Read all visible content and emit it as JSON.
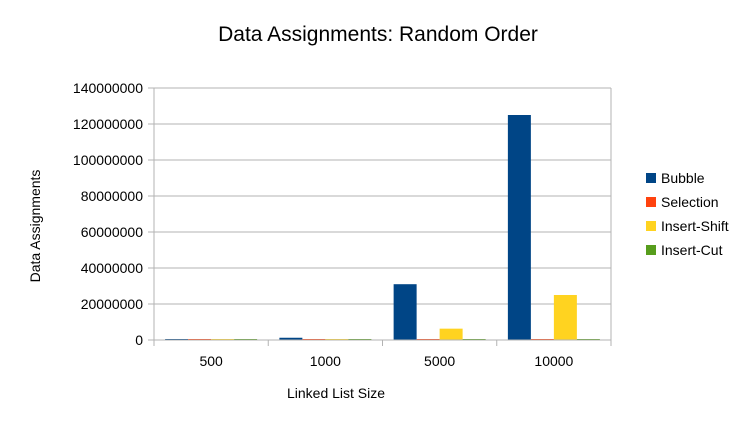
{
  "chart_data": {
    "type": "bar",
    "title": "Data Assignments: Random Order",
    "xlabel": "Linked List Size",
    "ylabel": "Data Assignments",
    "categories": [
      "500",
      "1000",
      "5000",
      "10000"
    ],
    "ylim": [
      0,
      140000000
    ],
    "yticks": [
      0,
      20000000,
      40000000,
      60000000,
      80000000,
      100000000,
      120000000,
      140000000
    ],
    "grid": true,
    "legend_position": "right",
    "series": [
      {
        "name": "Bubble",
        "color": "#004586",
        "values": [
          310000,
          1250000,
          31000000,
          125000000
        ]
      },
      {
        "name": "Selection",
        "color": "#ff420e",
        "values": [
          1500,
          3000,
          15000,
          30000
        ]
      },
      {
        "name": "Insert-Shift",
        "color": "#ffd320",
        "values": [
          65000,
          260000,
          6300000,
          25000000
        ]
      },
      {
        "name": "Insert-Cut",
        "color": "#579d1c",
        "values": [
          1500,
          3000,
          15000,
          30000
        ]
      }
    ]
  }
}
